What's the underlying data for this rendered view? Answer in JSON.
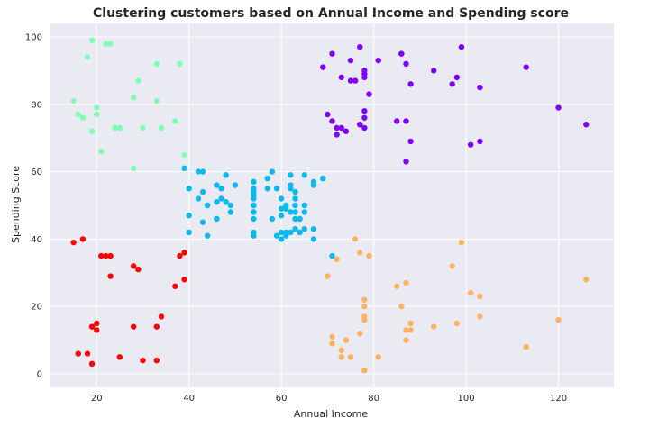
{
  "chart_data": {
    "type": "scatter",
    "title": "Clustering customers based on Annual Income and Spending score",
    "xlabel": "Annual Income",
    "ylabel": "Spending Score",
    "xlim": [
      10,
      132
    ],
    "ylim": [
      -4,
      104
    ],
    "xticks": [
      20,
      40,
      60,
      80,
      100,
      120
    ],
    "yticks": [
      0,
      20,
      40,
      60,
      80,
      100
    ],
    "grid": true,
    "background": "#eaeaf2",
    "series": [
      {
        "color": "#ff0000",
        "x": [
          15,
          17,
          19,
          20,
          20,
          21,
          16,
          18,
          19,
          23,
          25,
          29,
          28,
          28,
          23,
          21,
          30,
          33,
          34,
          33,
          37,
          38,
          39,
          39,
          19,
          22
        ],
        "y": [
          39,
          40,
          14,
          15,
          13,
          35,
          6,
          6,
          3,
          29,
          5,
          31,
          32,
          14,
          35,
          35,
          4,
          4,
          17,
          14,
          26,
          35,
          36,
          28,
          14,
          35
        ]
      },
      {
        "color": "#80ffb4",
        "x": [
          15,
          16,
          17,
          19,
          19,
          18,
          20,
          20,
          21,
          23,
          24,
          25,
          24,
          28,
          28,
          29,
          30,
          33,
          33,
          34,
          37,
          38,
          39,
          19,
          22
        ],
        "y": [
          81,
          77,
          76,
          99,
          72,
          94,
          79,
          77,
          66,
          98,
          73,
          73,
          73,
          82,
          61,
          87,
          73,
          92,
          81,
          73,
          75,
          92,
          65,
          72,
          98
        ]
      },
      {
        "color": "#0cb9ec",
        "x": [
          39,
          40,
          40,
          40,
          42,
          42,
          43,
          43,
          43,
          44,
          44,
          46,
          46,
          46,
          46,
          47,
          47,
          48,
          48,
          48,
          49,
          49,
          50,
          54,
          54,
          54,
          54,
          54,
          54,
          54,
          54,
          54,
          54,
          54,
          54,
          57,
          57,
          58,
          58,
          59,
          59,
          60,
          60,
          60,
          60,
          60,
          61,
          61,
          61,
          61,
          62,
          62,
          62,
          62,
          62,
          63,
          63,
          63,
          63,
          63,
          63,
          64,
          64,
          65,
          65,
          65,
          65,
          67,
          67,
          67,
          67,
          69,
          71
        ],
        "y": [
          61,
          55,
          47,
          42,
          52,
          60,
          54,
          60,
          45,
          41,
          50,
          46,
          51,
          46,
          56,
          55,
          52,
          59,
          51,
          59,
          50,
          48,
          56,
          42,
          46,
          48,
          50,
          55,
          53,
          52,
          50,
          48,
          54,
          57,
          41,
          58,
          55,
          46,
          60,
          55,
          41,
          49,
          40,
          42,
          52,
          47,
          50,
          42,
          49,
          41,
          48,
          59,
          55,
          56,
          42,
          50,
          46,
          43,
          48,
          52,
          54,
          42,
          46,
          48,
          50,
          43,
          59,
          43,
          57,
          56,
          40,
          58,
          35
        ]
      },
      {
        "color": "#8000ff",
        "x": [
          69,
          70,
          71,
          71,
          72,
          73,
          73,
          74,
          75,
          76,
          77,
          77,
          78,
          78,
          78,
          78,
          78,
          78,
          79,
          81,
          85,
          86,
          87,
          87,
          87,
          88,
          88,
          93,
          97,
          98,
          99,
          101,
          103,
          103,
          113,
          120,
          126,
          72,
          75,
          77,
          86
        ],
        "y": [
          91,
          77,
          95,
          75,
          71,
          88,
          73,
          72,
          93,
          87,
          97,
          74,
          90,
          88,
          76,
          89,
          78,
          73,
          83,
          93,
          75,
          95,
          63,
          75,
          92,
          86,
          69,
          90,
          86,
          88,
          97,
          68,
          85,
          69,
          91,
          79,
          74,
          73,
          87,
          74,
          95
        ]
      },
      {
        "color": "#ffb360",
        "x": [
          70,
          71,
          71,
          72,
          73,
          73,
          74,
          75,
          76,
          77,
          77,
          78,
          78,
          78,
          78,
          78,
          78,
          79,
          81,
          85,
          86,
          87,
          87,
          87,
          88,
          88,
          93,
          97,
          98,
          99,
          101,
          103,
          103,
          113,
          120,
          126,
          71,
          74
        ],
        "y": [
          29,
          11,
          9,
          34,
          5,
          7,
          10,
          5,
          40,
          12,
          36,
          22,
          17,
          20,
          16,
          1,
          1,
          35,
          5,
          26,
          20,
          27,
          13,
          10,
          13,
          15,
          14,
          32,
          15,
          39,
          24,
          17,
          23,
          8,
          16,
          28,
          9,
          10
        ]
      }
    ]
  }
}
